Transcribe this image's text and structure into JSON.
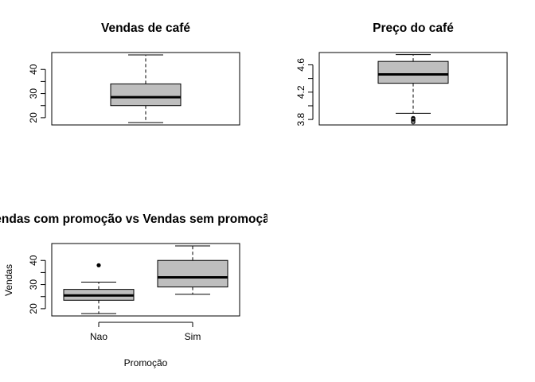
{
  "chart_data": [
    {
      "type": "boxplot",
      "title": "Vendas de café",
      "xlabel": "",
      "ylabel": "",
      "ylim": [
        17,
        47
      ],
      "yticks": [
        "20",
        "30",
        "40"
      ],
      "grid": false,
      "boxes": [
        {
          "label": "",
          "min": 18,
          "q1": 25,
          "median": 28.5,
          "q3": 34,
          "max": 46,
          "outliers": []
        }
      ]
    },
    {
      "type": "boxplot",
      "title": "Preço do café",
      "xlabel": "",
      "ylabel": "",
      "ylim": [
        3.72,
        4.78
      ],
      "yticks": [
        "3.8",
        "4.2",
        "4.6"
      ],
      "grid": false,
      "boxes": [
        {
          "label": "",
          "min": 3.89,
          "q1": 4.33,
          "median": 4.46,
          "q3": 4.65,
          "max": 4.75,
          "outliers": [
            3.82,
            3.81,
            3.8,
            3.78,
            3.76
          ]
        }
      ]
    },
    {
      "type": "boxplot",
      "title": "Vendas com promoção vs Vendas sem promoção",
      "xlabel": "Promoção",
      "ylabel": "Vendas",
      "ylim": [
        17,
        47
      ],
      "yticks": [
        "20",
        "30",
        "40"
      ],
      "grid": false,
      "boxes": [
        {
          "label": "Nao",
          "min": 18,
          "q1": 23.5,
          "median": 25.5,
          "q3": 28,
          "max": 31,
          "outliers": [
            38
          ]
        },
        {
          "label": "Sim",
          "min": 26,
          "q1": 29,
          "median": 33,
          "q3": 40,
          "max": 46,
          "outliers": []
        }
      ]
    }
  ],
  "colors": {
    "box_fill": "#bebebe",
    "stroke": "#000000",
    "background": "#ffffff"
  }
}
